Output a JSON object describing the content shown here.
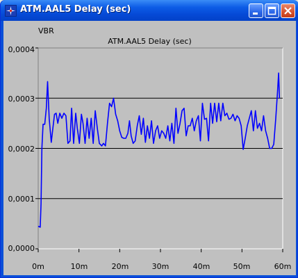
{
  "window": {
    "title": "ATM.AAL5 Delay (sec)",
    "buttons": [
      "minimize",
      "maximize",
      "close"
    ]
  },
  "chart_data": {
    "type": "line",
    "panel_label": "VBR",
    "title": "ATM.AAL5 Delay (sec)",
    "xlabel": "",
    "ylabel": "",
    "x_tick_labels": [
      "0m",
      "10m",
      "20m",
      "30m",
      "40m",
      "50m",
      "60m"
    ],
    "y_tick_labels": [
      "0,0000",
      "0,0001",
      "0,0002",
      "0,0003",
      "0,0004"
    ],
    "xlim": [
      0,
      60
    ],
    "ylim": [
      0,
      0.0004
    ],
    "x_unit": "minutes",
    "gridlines_y": [
      0.0001,
      0.0002,
      0.0003
    ],
    "series": [
      {
        "color": "#0000ff",
        "points": [
          [
            0.0,
            4.5e-05
          ],
          [
            0.5,
            4.3e-05
          ],
          [
            0.7,
            9e-05
          ],
          [
            0.9,
            0.0002
          ],
          [
            1.2,
            0.000248
          ],
          [
            1.6,
            0.000248
          ],
          [
            2.0,
            0.00028
          ],
          [
            2.3,
            0.000333
          ],
          [
            2.7,
            0.00026
          ],
          [
            3.2,
            0.000212
          ],
          [
            3.6,
            0.00024
          ],
          [
            4.0,
            0.000268
          ],
          [
            4.4,
            0.00027
          ],
          [
            4.8,
            0.00025
          ],
          [
            5.3,
            0.00027
          ],
          [
            5.8,
            0.00026
          ],
          [
            6.3,
            0.00027
          ],
          [
            6.8,
            0.000265
          ],
          [
            7.3,
            0.00021
          ],
          [
            7.8,
            0.000215
          ],
          [
            8.2,
            0.00028
          ],
          [
            8.7,
            0.00021
          ],
          [
            9.2,
            0.00027
          ],
          [
            9.6,
            0.00024
          ],
          [
            10.1,
            0.00021
          ],
          [
            10.6,
            0.000268
          ],
          [
            11.0,
            0.00025
          ],
          [
            11.5,
            0.00021
          ],
          [
            12.0,
            0.00026
          ],
          [
            12.5,
            0.00022
          ],
          [
            13.0,
            0.00026
          ],
          [
            13.5,
            0.00021
          ],
          [
            14.0,
            0.000275
          ],
          [
            14.5,
            0.00024
          ],
          [
            15.0,
            0.00021
          ],
          [
            15.6,
            0.000205
          ],
          [
            16.0,
            0.00021
          ],
          [
            16.5,
            0.000205
          ],
          [
            17.0,
            0.00025
          ],
          [
            17.5,
            0.00029
          ],
          [
            18.0,
            0.000283
          ],
          [
            18.5,
            0.0003
          ],
          [
            19.0,
            0.000268
          ],
          [
            19.5,
            0.000255
          ],
          [
            20.0,
            0.000235
          ],
          [
            20.5,
            0.000222
          ],
          [
            21.0,
            0.00022
          ],
          [
            21.5,
            0.00022
          ],
          [
            22.0,
            0.00023
          ],
          [
            22.4,
            0.000255
          ],
          [
            22.8,
            0.000225
          ],
          [
            23.3,
            0.00021
          ],
          [
            23.8,
            0.000215
          ],
          [
            24.3,
            0.000245
          ],
          [
            24.8,
            0.000265
          ],
          [
            25.3,
            0.000228
          ],
          [
            25.8,
            0.00026
          ],
          [
            26.3,
            0.000212
          ],
          [
            26.8,
            0.000245
          ],
          [
            27.3,
            0.00022
          ],
          [
            27.8,
            0.000255
          ],
          [
            28.3,
            0.00021
          ],
          [
            28.8,
            0.000235
          ],
          [
            29.3,
            0.000245
          ],
          [
            29.8,
            0.00022
          ],
          [
            30.3,
            0.000235
          ],
          [
            30.8,
            0.00023
          ],
          [
            31.3,
            0.00022
          ],
          [
            31.8,
            0.000245
          ],
          [
            32.3,
            0.000215
          ],
          [
            32.8,
            0.00025
          ],
          [
            33.3,
            0.00021
          ],
          [
            33.8,
            0.00028
          ],
          [
            34.3,
            0.00023
          ],
          [
            34.8,
            0.00025
          ],
          [
            35.3,
            0.000275
          ],
          [
            35.8,
            0.00028
          ],
          [
            36.3,
            0.000225
          ],
          [
            36.8,
            0.000245
          ],
          [
            37.3,
            0.000245
          ],
          [
            37.8,
            0.00026
          ],
          [
            38.3,
            0.000235
          ],
          [
            38.8,
            0.000255
          ],
          [
            39.3,
            0.000265
          ],
          [
            39.8,
            0.000215
          ],
          [
            40.3,
            0.00029
          ],
          [
            40.8,
            0.000258
          ],
          [
            41.3,
            0.00026
          ],
          [
            41.8,
            0.000215
          ],
          [
            42.3,
            0.00029
          ],
          [
            42.8,
            0.00025
          ],
          [
            43.3,
            0.00029
          ],
          [
            43.8,
            0.000253
          ],
          [
            44.3,
            0.00029
          ],
          [
            44.8,
            0.000255
          ],
          [
            45.3,
            0.00029
          ],
          [
            45.8,
            0.000265
          ],
          [
            46.3,
            0.00027
          ],
          [
            46.8,
            0.000258
          ],
          [
            47.3,
            0.00026
          ],
          [
            47.8,
            0.000268
          ],
          [
            48.3,
            0.000255
          ],
          [
            48.8,
            0.000265
          ],
          [
            49.3,
            0.00026
          ],
          [
            49.8,
            0.000245
          ],
          [
            50.3,
            0.000198
          ],
          [
            50.8,
            0.00022
          ],
          [
            51.3,
            0.000245
          ],
          [
            51.8,
            0.00026
          ],
          [
            52.3,
            0.000275
          ],
          [
            52.8,
            0.000235
          ],
          [
            53.3,
            0.000275
          ],
          [
            53.8,
            0.00024
          ],
          [
            54.3,
            0.00025
          ],
          [
            54.8,
            0.000235
          ],
          [
            55.3,
            0.000265
          ],
          [
            55.8,
            0.000235
          ],
          [
            56.3,
            0.00022
          ],
          [
            56.8,
            0.0002
          ],
          [
            57.3,
            0.0002
          ],
          [
            57.8,
            0.000208
          ],
          [
            58.3,
            0.00026
          ],
          [
            58.7,
            0.00031
          ],
          [
            59.0,
            0.00035
          ],
          [
            59.2,
            0.0003
          ]
        ]
      }
    ]
  }
}
